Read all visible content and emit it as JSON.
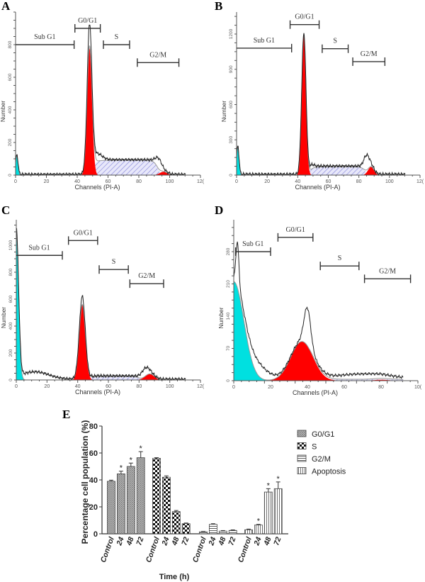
{
  "chart_data": [
    {
      "panel": "A",
      "type": "area",
      "xlabel": "Channels (PI-A)",
      "ylabel": "Number",
      "xlim": [
        0,
        120
      ],
      "xticks": [
        "0",
        "20",
        "40",
        "60",
        "80",
        "100",
        "12("
      ],
      "yticks": [
        "0",
        "200",
        "400",
        "600",
        "800"
      ],
      "ylim": [
        0,
        800
      ],
      "components": {
        "sub_g1": {
          "center": 0.8,
          "height": 120,
          "width": 0.8
        },
        "g0_g1": {
          "center": 48,
          "height": 780,
          "width": 1.6
        },
        "s": {
          "from": 50,
          "to": 92,
          "height": 90
        },
        "g2_m": {
          "center": 96,
          "height": 20,
          "width": 2.5
        }
      },
      "raw_peaks": [
        {
          "center": 48,
          "height": 130,
          "width": 1.2
        },
        {
          "center": 93,
          "height": 60,
          "width": 2
        },
        {
          "center": 53,
          "height": 40,
          "width": 3
        }
      ],
      "gates": [
        {
          "label": "Sub G1",
          "from": 0,
          "to": 38,
          "level": 800
        },
        {
          "label": "G0/G1",
          "from": 38.5,
          "to": 55,
          "level": 900
        },
        {
          "label": "S",
          "from": 57,
          "to": 74,
          "level": 800
        },
        {
          "label": "G2/M",
          "from": 79,
          "to": 106,
          "level": 690
        }
      ]
    },
    {
      "panel": "B",
      "type": "area",
      "xlabel": "Channels (PI-A)",
      "ylabel": "Number",
      "xlim": [
        0,
        120
      ],
      "xticks": [
        "0",
        "20",
        "40",
        "60",
        "80",
        "100",
        "12("
      ],
      "yticks": [
        "0",
        "300",
        "600",
        "900",
        "1200"
      ],
      "ylim": [
        0,
        1200
      ],
      "components": {
        "sub_g1": {
          "center": 0.8,
          "height": 240,
          "width": 0.8
        },
        "g0_g1": {
          "center": 44,
          "height": 1200,
          "width": 1.4
        },
        "s": {
          "from": 48,
          "to": 84,
          "height": 70
        },
        "g2_m": {
          "center": 88,
          "height": 70,
          "width": 2
        }
      },
      "raw_peaks": [
        {
          "center": 85,
          "height": 120,
          "width": 1.8
        },
        {
          "center": 49,
          "height": 30,
          "width": 1.5
        }
      ],
      "gates": [
        {
          "label": "Sub G1",
          "from": 0,
          "to": 36,
          "level": 1080
        },
        {
          "label": "G0/G1",
          "from": 35,
          "to": 54,
          "level": 1280
        },
        {
          "label": "S",
          "from": 56,
          "to": 73,
          "level": 1075
        },
        {
          "label": "G2/M",
          "from": 76,
          "to": 97,
          "level": 965
        }
      ]
    },
    {
      "panel": "C",
      "type": "area",
      "xlabel": "Channels (PI-A)",
      "ylabel": "Number",
      "xlim": [
        0,
        120
      ],
      "xticks": [
        "0",
        "20",
        "40",
        "60",
        "80",
        "100",
        "12("
      ],
      "yticks": [
        "0",
        "200",
        "400",
        "600",
        "800",
        "1000"
      ],
      "ylim": [
        0,
        1000
      ],
      "components": {
        "sub_g1": {
          "center": 0,
          "height": 1100,
          "width": 1.5
        },
        "g0_g1": {
          "center": 43,
          "height": 560,
          "width": 2
        },
        "s": {
          "from": 48,
          "to": 80,
          "height": 25
        },
        "g2_m": {
          "center": 87,
          "height": 45,
          "width": 3
        }
      },
      "raw_peaks": [
        {
          "center": 84,
          "height": 55,
          "width": 2.5
        },
        {
          "center": 43,
          "height": 55,
          "width": 1.5
        },
        {
          "center": 12,
          "height": 55,
          "width": 9
        }
      ],
      "gates": [
        {
          "label": "Sub G1",
          "from": 0,
          "to": 30,
          "level": 925
        },
        {
          "label": "G0/G1",
          "from": 34,
          "to": 53,
          "level": 1035
        },
        {
          "label": "S",
          "from": 54,
          "to": 73,
          "level": 820
        },
        {
          "label": "G2/M",
          "from": 74,
          "to": 96,
          "level": 715
        }
      ]
    },
    {
      "panel": "D",
      "type": "area",
      "xlabel": "Channels (PI-A)",
      "ylabel": "Number",
      "xlim": [
        0,
        100
      ],
      "xticks": [
        "0",
        "20",
        "40",
        "60",
        "80",
        "10("
      ],
      "yticks": [
        "0",
        "70",
        "140",
        "210",
        "280"
      ],
      "ylim": [
        0,
        280
      ],
      "components": {
        "sub_g1": {
          "center": 0,
          "height": 215,
          "width": 5.5
        },
        "g0_g1": {
          "center": 37,
          "height": 85,
          "width": 6
        },
        "s": {
          "from": 42,
          "to": 95,
          "height": 3
        },
        "g2_m": {
          "center": 80,
          "height": 2,
          "width": 4
        }
      },
      "raw_peaks": [
        {
          "center": 40,
          "height": 80,
          "width": 1.8
        },
        {
          "center": 2,
          "height": 90,
          "width": 0.8
        },
        {
          "center": 12,
          "height": 30,
          "width": 6
        },
        {
          "center": 70,
          "height": 10,
          "width": 14
        }
      ],
      "gates": [
        {
          "label": "Sub G1",
          "from": 1,
          "to": 20,
          "level": 280
        },
        {
          "label": "G0/G1",
          "from": 24,
          "to": 43,
          "level": 311
        },
        {
          "label": "S",
          "from": 47,
          "to": 68,
          "level": 249
        },
        {
          "label": "G2/M",
          "from": 71,
          "to": 96,
          "level": 221
        }
      ]
    },
    {
      "panel": "E",
      "type": "bar",
      "title": "",
      "xlabel": "Time (h)",
      "ylabel": "Percentage cell population (%)",
      "ylim": [
        0,
        80
      ],
      "yticks": [
        "0",
        "20",
        "40",
        "60",
        "80"
      ],
      "categories": [
        "Control",
        "24",
        "48",
        "72"
      ],
      "series": [
        {
          "name": "G0/G1",
          "pattern": "dense-crosshatch",
          "values": [
            39,
            44.5,
            50,
            56.5
          ],
          "errors": [
            0.8,
            2,
            2.5,
            4.5
          ],
          "significant": [
            false,
            true,
            true,
            true
          ]
        },
        {
          "name": "S",
          "pattern": "checker",
          "values": [
            56,
            42,
            16.5,
            7.5
          ],
          "errors": [
            0.5,
            1,
            0.8,
            0.5
          ],
          "significant": [
            false,
            false,
            false,
            false
          ]
        },
        {
          "name": "G2/M",
          "pattern": "horizontal-lines",
          "values": [
            1.5,
            7,
            2,
            2.5
          ],
          "errors": [
            0.3,
            0.5,
            0.4,
            0.4
          ],
          "significant": [
            false,
            false,
            false,
            false
          ]
        },
        {
          "name": "Apoptosis",
          "pattern": "vertical-lines",
          "values": [
            3,
            6.5,
            31,
            33.5
          ],
          "errors": [
            0.5,
            0.5,
            2.5,
            5
          ],
          "significant": [
            false,
            true,
            true,
            true
          ]
        }
      ],
      "significance_marker": "*",
      "legend": "right"
    }
  ],
  "colors": {
    "sub_g1": "#00e0e0",
    "g0_g1": "#ff0000",
    "s_hatch": "#7f7fd8",
    "raw": "#222222",
    "fit": "#999999"
  }
}
